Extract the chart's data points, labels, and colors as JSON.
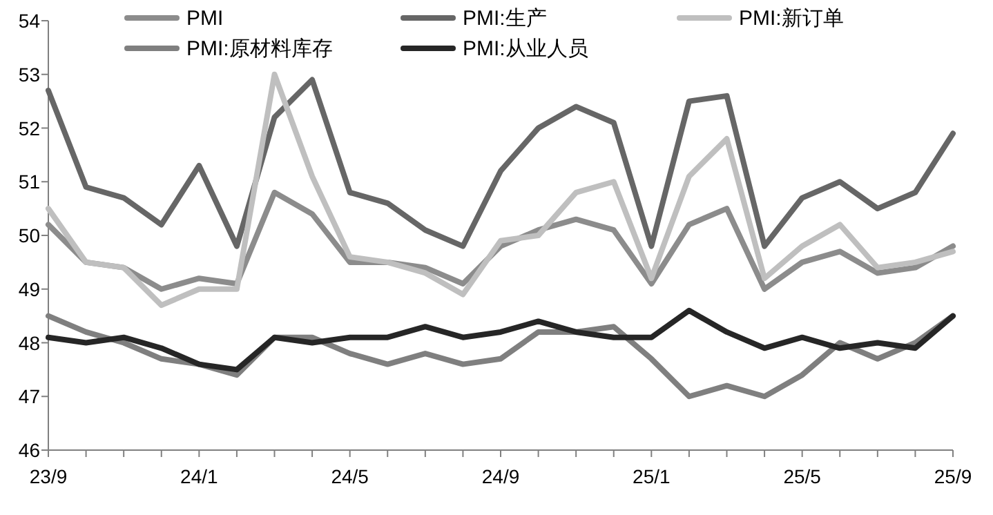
{
  "chart_data": {
    "type": "line",
    "categories": [
      "23/9",
      null,
      null,
      null,
      "24/1",
      null,
      null,
      null,
      "24/5",
      null,
      null,
      null,
      "24/9",
      null,
      null,
      null,
      "25/1",
      null,
      null,
      null,
      "25/5",
      null,
      null,
      null,
      "25/9"
    ],
    "ylim": [
      46,
      54
    ],
    "yticks": [
      46,
      47,
      48,
      49,
      50,
      51,
      52,
      53,
      54
    ],
    "grid": false,
    "legend": "top",
    "marker": "none",
    "line_style": "solid",
    "series": [
      {
        "name": "PMI",
        "color": "#8c8c8c",
        "values": [
          50.2,
          49.5,
          49.4,
          49.0,
          49.2,
          49.1,
          50.8,
          50.4,
          49.5,
          49.5,
          49.4,
          49.1,
          49.8,
          50.1,
          50.3,
          50.1,
          49.1,
          50.2,
          50.5,
          49.0,
          49.5,
          49.7,
          49.3,
          49.4,
          49.8
        ]
      },
      {
        "name": "PMI:生产",
        "color": "#666666",
        "values": [
          52.7,
          50.9,
          50.7,
          50.2,
          51.3,
          49.8,
          52.2,
          52.9,
          50.8,
          50.6,
          50.1,
          49.8,
          51.2,
          52.0,
          52.4,
          52.1,
          49.8,
          52.5,
          52.6,
          49.8,
          50.7,
          51.0,
          50.5,
          50.8,
          51.9
        ]
      },
      {
        "name": "PMI:新订单",
        "color": "#bfbfbf",
        "values": [
          50.5,
          49.5,
          49.4,
          48.7,
          49.0,
          49.0,
          53.0,
          51.1,
          49.6,
          49.5,
          49.3,
          48.9,
          49.9,
          50.0,
          50.8,
          51.0,
          49.2,
          51.1,
          51.8,
          49.2,
          49.8,
          50.2,
          49.4,
          49.5,
          49.7
        ]
      },
      {
        "name": "PMI:原材料库存",
        "color": "#7f7f7f",
        "values": [
          48.5,
          48.2,
          48.0,
          47.7,
          47.6,
          47.4,
          48.1,
          48.1,
          47.8,
          47.6,
          47.8,
          47.6,
          47.7,
          48.2,
          48.2,
          48.3,
          47.7,
          47.0,
          47.2,
          47.0,
          47.4,
          48.0,
          47.7,
          48.0,
          48.5
        ]
      },
      {
        "name": "PMI:从业人员",
        "color": "#262626",
        "values": [
          48.1,
          48.0,
          48.1,
          47.9,
          47.6,
          47.5,
          48.1,
          48.0,
          48.1,
          48.1,
          48.3,
          48.1,
          48.2,
          48.4,
          48.2,
          48.1,
          48.1,
          48.6,
          48.2,
          47.9,
          48.1,
          47.9,
          48.0,
          47.9,
          48.5
        ]
      }
    ]
  }
}
